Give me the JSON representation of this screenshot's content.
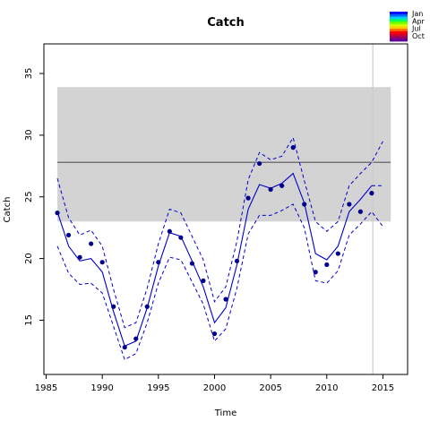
{
  "chart_data": {
    "type": "line",
    "title": "Catch",
    "xlabel": "Time",
    "ylabel": "Catch",
    "xlim": [
      1984.8,
      2017.2
    ],
    "ylim": [
      10.6,
      37.4
    ],
    "x_ticks": [
      1985,
      1990,
      1995,
      2000,
      2005,
      2010,
      2015
    ],
    "y_ticks": [
      15,
      20,
      25,
      30,
      35
    ],
    "reference_band": [
      23.0,
      33.9
    ],
    "reference_line": 27.8,
    "vertical_line_x": 2014.1,
    "colors": {
      "series": "#0000cc",
      "band": "#d3d3d3",
      "refline": "#555555",
      "vline": "#cccccc"
    },
    "series": [
      {
        "type": "points",
        "x": [
          1986,
          1987,
          1988,
          1989,
          1990,
          1991,
          1992,
          1993,
          1994,
          1995,
          1996,
          1997,
          1998,
          1999,
          2000,
          2001,
          2002,
          2003,
          2004,
          2005,
          2006,
          2007,
          2008,
          2009,
          2010,
          2011,
          2012,
          2013,
          2014
        ],
        "y": [
          23.7,
          21.9,
          20.1,
          21.2,
          19.7,
          16.1,
          12.8,
          13.5,
          16.1,
          19.7,
          22.2,
          21.7,
          19.6,
          18.2,
          13.9,
          16.7,
          19.8,
          24.9,
          27.7,
          25.6,
          25.9,
          29.0,
          24.4,
          18.9,
          19.5,
          20.4,
          24.4,
          23.8,
          25.3
        ]
      },
      {
        "type": "fit",
        "x": [
          1986,
          1987,
          1988,
          1989,
          1990,
          1991,
          1992,
          1993,
          1994,
          1995,
          1996,
          1997,
          1998,
          1999,
          2000,
          2001,
          2002,
          2003,
          2004,
          2005,
          2006,
          2007,
          2008,
          2009,
          2010,
          2011,
          2012,
          2013,
          2014
        ],
        "y": [
          23.8,
          21.0,
          19.8,
          20.0,
          18.9,
          15.7,
          12.9,
          13.3,
          16.0,
          19.4,
          22.1,
          21.8,
          19.8,
          17.7,
          14.8,
          16.0,
          19.5,
          24.0,
          26.0,
          25.7,
          26.1,
          26.9,
          24.5,
          20.4,
          19.9,
          21.0,
          23.8,
          24.8,
          25.9
        ]
      },
      {
        "type": "upper",
        "x": [
          1986,
          1987,
          1988,
          1989,
          1990,
          1991,
          1992,
          1993,
          1994,
          1995,
          1996,
          1997,
          1998,
          1999,
          2000,
          2001,
          2002,
          2003,
          2004,
          2005,
          2006,
          2007,
          2008,
          2009,
          2010,
          2011,
          2012,
          2013,
          2014,
          2015
        ],
        "y": [
          26.5,
          23.3,
          21.9,
          22.3,
          21.0,
          17.5,
          14.4,
          14.8,
          17.6,
          21.2,
          24.0,
          23.7,
          21.8,
          19.9,
          16.5,
          17.7,
          21.4,
          26.4,
          28.6,
          28.0,
          28.3,
          29.8,
          26.3,
          23.0,
          22.2,
          23.0,
          25.9,
          26.9,
          27.8,
          29.5
        ]
      },
      {
        "type": "lower",
        "x": [
          1986,
          1987,
          1988,
          1989,
          1990,
          1991,
          1992,
          1993,
          1994,
          1995,
          1996,
          1997,
          1998,
          1999,
          2000,
          2001,
          2002,
          2003,
          2004,
          2005,
          2006,
          2007,
          2008,
          2009,
          2010,
          2011,
          2012,
          2013,
          2014,
          2015
        ],
        "y": [
          21.0,
          18.8,
          17.9,
          18.0,
          17.2,
          14.5,
          11.8,
          12.3,
          14.8,
          18.0,
          20.1,
          19.9,
          18.1,
          16.3,
          13.3,
          14.3,
          17.6,
          22.0,
          23.5,
          23.5,
          23.9,
          24.4,
          22.5,
          18.2,
          18.0,
          19.0,
          21.9,
          22.8,
          23.8,
          22.6
        ]
      },
      {
        "type": "forecast",
        "x": [
          2014,
          2015
        ],
        "y": [
          25.9,
          25.9
        ]
      }
    ],
    "legend": {
      "entries": [
        "Jan",
        "Apr",
        "Jul",
        "Oct"
      ],
      "colors": [
        "#0000ff",
        "#0066ff",
        "#00ccff",
        "#00ff66",
        "#66ff00",
        "#ccff00",
        "#ffcc00",
        "#ff6600",
        "#ff0000",
        "#cc0033",
        "#990066",
        "#660099"
      ]
    }
  }
}
